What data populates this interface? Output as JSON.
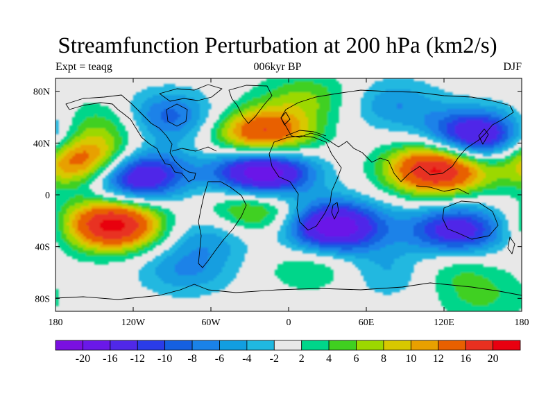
{
  "title": "Streamfunction Perturbation at 200 hPa (km2/s)",
  "left_label": "Expt = teaqg",
  "center_label": "006kyr BP",
  "right_label": "DJF",
  "axes": {
    "x_ticks": [
      "180",
      "120W",
      "60W",
      "0",
      "60E",
      "120E",
      "180"
    ],
    "y_ticks": [
      "80N",
      "40N",
      "0",
      "40S",
      "80S"
    ],
    "lon_range": [
      -180,
      180
    ],
    "lat_range": [
      -90,
      90
    ]
  },
  "colorbar": {
    "labels": [
      "-20",
      "-16",
      "-12",
      "-10",
      "-8",
      "-6",
      "-4",
      "-2",
      "2",
      "4",
      "6",
      "8",
      "10",
      "12",
      "16",
      "20"
    ],
    "colors": [
      "#7a10e0",
      "#6a18e8",
      "#5028e8",
      "#2a3ce8",
      "#1560e0",
      "#1a82e8",
      "#129ee0",
      "#20b8e0",
      "#e8e8e8",
      "#00d68a",
      "#40d020",
      "#9cd800",
      "#d8c800",
      "#e8a000",
      "#e86000",
      "#e83020",
      "#e80010"
    ]
  },
  "chart_data": {
    "type": "heatmap",
    "variable": "streamfunction perturbation at 200 hPa",
    "units": "km2/s",
    "centers": [
      {
        "name": "NE Pacific high",
        "lon": -155,
        "lat": 25,
        "value": 18
      },
      {
        "name": "SE Pacific high",
        "lon": -135,
        "lat": -23,
        "value": 22
      },
      {
        "name": "North Atlantic high",
        "lon": -20,
        "lat": 46,
        "value": 18
      },
      {
        "name": "South Atlantic high",
        "lon": -28,
        "lat": -12,
        "value": 10
      },
      {
        "name": "South Asia high",
        "lon": 115,
        "lat": 20,
        "value": 22
      },
      {
        "name": "SW Indian Ocean high",
        "lon": 20,
        "lat": -55,
        "value": 5
      },
      {
        "name": "South Pacific high",
        "lon": 125,
        "lat": -55,
        "value": 5
      },
      {
        "name": "Arctic high",
        "lon": 15,
        "lat": 75,
        "value": 6
      },
      {
        "name": "Alaska high",
        "lon": -140,
        "lat": 55,
        "value": 6
      },
      {
        "name": "Antarctic high",
        "lon": 150,
        "lat": -80,
        "value": 4
      },
      {
        "name": "Pacific low",
        "lon": -120,
        "lat": 15,
        "value": -20
      },
      {
        "name": "Atlantic low",
        "lon": -20,
        "lat": 18,
        "value": -22
      },
      {
        "name": "South Africa low",
        "lon": 35,
        "lat": -25,
        "value": -20
      },
      {
        "name": "Australia low",
        "lon": 130,
        "lat": -28,
        "value": -15
      },
      {
        "name": "East Asia low",
        "lon": 145,
        "lat": 45,
        "value": -18
      },
      {
        "name": "Canada low",
        "lon": -95,
        "lat": 60,
        "value": -10
      },
      {
        "name": "Siberia low",
        "lon": 80,
        "lat": 70,
        "value": -6
      },
      {
        "name": "Southern Ocean low",
        "lon": -80,
        "lat": -58,
        "value": -6
      },
      {
        "name": "SW Atlantic low",
        "lon": -60,
        "lat": -30,
        "value": -6
      },
      {
        "name": "Southern Ocean low 2",
        "lon": 80,
        "lat": -60,
        "value": -5
      }
    ]
  }
}
